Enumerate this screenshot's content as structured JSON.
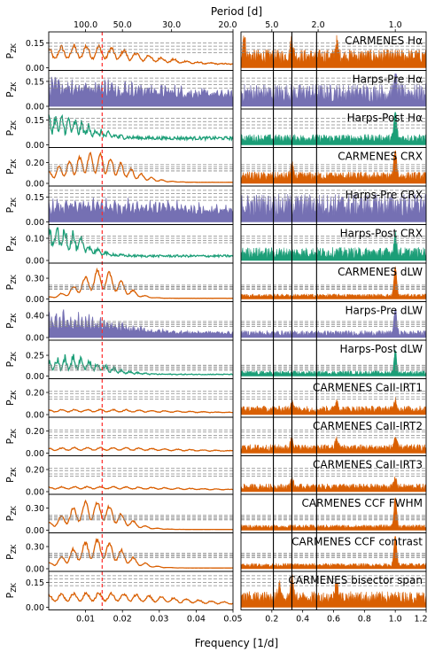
{
  "chart_data": {
    "type": "line",
    "title": "",
    "xlabel_bottom": "Frequency [1/d]",
    "xlabel_top": "Period [d]",
    "ylabel": "P",
    "ylabel_sub": "ZK",
    "colors": {
      "CARMENES": "#d95f02",
      "Harps-Pre": "#7570b3",
      "Harps-Post": "#1b9e77"
    },
    "left_xlim": [
      0.0,
      0.05
    ],
    "right_xlim": [
      0.0,
      1.2
    ],
    "left_xticks": [
      "0.01",
      "0.02",
      "0.03",
      "0.04",
      "0.05"
    ],
    "left_xtick_values": [
      0.01,
      0.02,
      0.03,
      0.04,
      0.05
    ],
    "right_xticks": [
      "0.2",
      "0.4",
      "0.6",
      "0.8",
      "1.0",
      "1.2"
    ],
    "right_xtick_values": [
      0.2,
      0.4,
      0.6,
      0.8,
      1.0,
      1.2
    ],
    "left_top_ticks": [
      "100.0",
      "50.0",
      "30.0",
      "20.0"
    ],
    "left_top_tick_periods": [
      100,
      50,
      30,
      20
    ],
    "right_top_ticks": [
      "5.0",
      "2.0",
      "1.0"
    ],
    "right_top_tick_periods": [
      5,
      2,
      1
    ],
    "red_line_freq": 0.0145,
    "right_vlines_freq": [
      0.21,
      0.33,
      0.49
    ],
    "panels": [
      {
        "label": "CARMENES Hα",
        "instrument": "CARMENES",
        "yticks": [
          "0.15",
          "0.00"
        ],
        "ytick_values": [
          0.15,
          0.0
        ],
        "ymax": 0.2,
        "fap": [
          0.09,
          0.11,
          0.13,
          0.15
        ],
        "left_amp": 0.11,
        "left_peak_freq": 0.009,
        "left_decay": 0.022,
        "left_period": 0.0034,
        "left_floor": 0.02,
        "left_noise": 0.25,
        "right_level": 0.07,
        "right_noise": 0.6,
        "right_peaks": [
          [
            0.02,
            0.13
          ],
          [
            0.33,
            0.11
          ],
          [
            0.62,
            0.09
          ]
        ]
      },
      {
        "label": "Harps-Pre Hα",
        "instrument": "Harps-Pre",
        "yticks": [
          "0.15",
          "0.00"
        ],
        "ytick_values": [
          0.15,
          0.0
        ],
        "ymax": 0.2,
        "fap": [
          0.11,
          0.13,
          0.15,
          0.17
        ],
        "left_amp": 0.09,
        "left_peak_freq": 0.002,
        "left_decay": 0.04,
        "left_period": 0.0009,
        "left_floor": 0.05,
        "left_noise": 0.8,
        "right_level": 0.08,
        "right_noise": 0.7,
        "right_peaks": [
          [
            1.0,
            0.12
          ]
        ]
      },
      {
        "label": "Harps-Post Hα",
        "instrument": "Harps-Post",
        "yticks": [
          "0.15",
          "0.00"
        ],
        "ytick_values": [
          0.15,
          0.0
        ],
        "ymax": 0.2,
        "fap": [
          0.1,
          0.12,
          0.14,
          0.16
        ],
        "left_amp": 0.12,
        "left_peak_freq": 0.0015,
        "left_decay": 0.012,
        "left_period": 0.0018,
        "left_floor": 0.04,
        "left_noise": 0.5,
        "right_level": 0.04,
        "right_noise": 0.6,
        "right_peaks": [
          [
            1.0,
            0.17
          ]
        ]
      },
      {
        "label": "CARMENES CRX",
        "instrument": "CARMENES",
        "yticks": [
          "0.20",
          "0.00"
        ],
        "ytick_values": [
          0.2,
          0.0
        ],
        "ymax": 0.32,
        "fap": [
          0.12,
          0.14,
          0.16,
          0.18
        ],
        "left_amp": 0.27,
        "left_peak_freq": 0.012,
        "left_decay": 0.012,
        "left_period": 0.0028,
        "left_floor": 0.01,
        "left_noise": 0.15,
        "right_level": 0.07,
        "right_noise": 0.6,
        "right_peaks": [
          [
            1.0,
            0.27
          ],
          [
            0.33,
            0.11
          ]
        ]
      },
      {
        "label": "Harps-Pre CRX",
        "instrument": "Harps-Pre",
        "yticks": [
          "0.15",
          "0.00"
        ],
        "ytick_values": [
          0.15,
          0.0
        ],
        "ymax": 0.2,
        "fap": [
          0.13,
          0.15,
          0.17,
          0.19
        ],
        "left_amp": 0.07,
        "left_peak_freq": 0.015,
        "left_decay": 0.04,
        "left_period": 0.0012,
        "left_floor": 0.04,
        "left_noise": 0.8,
        "right_level": 0.1,
        "right_noise": 0.7,
        "right_peaks": []
      },
      {
        "label": "Harps-Post CRX",
        "instrument": "Harps-Post",
        "yticks": [
          "0.10",
          "0.00"
        ],
        "ytick_values": [
          0.1,
          0.0
        ],
        "ymax": 0.15,
        "fap": [
          0.08,
          0.09,
          0.1,
          0.11
        ],
        "left_amp": 0.13,
        "left_peak_freq": 0.001,
        "left_decay": 0.01,
        "left_period": 0.0022,
        "left_floor": 0.02,
        "left_noise": 0.5,
        "right_level": 0.035,
        "right_noise": 0.7,
        "right_peaks": [
          [
            1.0,
            0.08
          ]
        ]
      },
      {
        "label": "CARMENES dLW",
        "instrument": "CARMENES",
        "yticks": [
          "0.30",
          "0.00"
        ],
        "ytick_values": [
          0.3,
          0.0
        ],
        "ymax": 0.48,
        "fap": [
          0.14,
          0.16,
          0.18,
          0.2
        ],
        "left_amp": 0.4,
        "left_peak_freq": 0.014,
        "left_decay": 0.008,
        "left_period": 0.0033,
        "left_floor": 0.01,
        "left_noise": 0.15,
        "right_level": 0.05,
        "right_noise": 0.5,
        "right_peaks": [
          [
            1.0,
            0.42
          ]
        ]
      },
      {
        "label": "Harps-Pre dLW",
        "instrument": "Harps-Pre",
        "yticks": [
          "0.40",
          "0.00"
        ],
        "ytick_values": [
          0.4,
          0.0
        ],
        "ymax": 0.6,
        "fap": [
          0.2,
          0.23,
          0.26,
          0.29
        ],
        "left_amp": 0.3,
        "left_peak_freq": 0.001,
        "left_decay": 0.02,
        "left_period": 0.001,
        "left_floor": 0.08,
        "left_noise": 0.8,
        "right_level": 0.08,
        "right_noise": 0.6,
        "right_peaks": [
          [
            1.0,
            0.45
          ]
        ]
      },
      {
        "label": "Harps-Post dLW",
        "instrument": "Harps-Post",
        "yticks": [
          "0.25",
          "0.00"
        ],
        "ytick_values": [
          0.25,
          0.0
        ],
        "ymax": 0.4,
        "fap": [
          0.07,
          0.09,
          0.11,
          0.13
        ],
        "left_amp": 0.2,
        "left_peak_freq": 0.006,
        "left_decay": 0.012,
        "left_period": 0.0022,
        "left_floor": 0.02,
        "left_noise": 0.5,
        "right_level": 0.04,
        "right_noise": 0.6,
        "right_peaks": [
          [
            1.0,
            0.27
          ]
        ]
      },
      {
        "label": "CARMENES CaII-IRT1",
        "instrument": "CARMENES",
        "yticks": [
          "0.20",
          "0.00"
        ],
        "ytick_values": [
          0.2,
          0.0
        ],
        "ymax": 0.3,
        "fap": [
          0.14,
          0.16,
          0.19,
          0.21
        ],
        "left_amp": 0.03,
        "left_peak_freq": 0.012,
        "left_decay": 0.03,
        "left_period": 0.0035,
        "left_floor": 0.015,
        "left_noise": 0.2,
        "right_level": 0.05,
        "right_noise": 0.6,
        "right_peaks": [
          [
            0.33,
            0.09
          ],
          [
            0.62,
            0.08
          ],
          [
            1.0,
            0.09
          ]
        ]
      },
      {
        "label": "CARMENES CaII-IRT2",
        "instrument": "CARMENES",
        "yticks": [
          "0.20",
          "0.00"
        ],
        "ytick_values": [
          0.2,
          0.0
        ],
        "ymax": 0.3,
        "fap": [
          0.14,
          0.16,
          0.19,
          0.21
        ],
        "left_amp": 0.035,
        "left_peak_freq": 0.013,
        "left_decay": 0.03,
        "left_period": 0.0035,
        "left_floor": 0.015,
        "left_noise": 0.2,
        "right_level": 0.05,
        "right_noise": 0.6,
        "right_peaks": [
          [
            0.33,
            0.1
          ],
          [
            0.62,
            0.08
          ],
          [
            1.0,
            0.1
          ]
        ]
      },
      {
        "label": "CARMENES CaII-IRT3",
        "instrument": "CARMENES",
        "yticks": [
          "0.20",
          "0.00"
        ],
        "ytick_values": [
          0.2,
          0.0
        ],
        "ymax": 0.3,
        "fap": [
          0.14,
          0.16,
          0.19,
          0.21
        ],
        "left_amp": 0.03,
        "left_peak_freq": 0.012,
        "left_decay": 0.03,
        "left_period": 0.0035,
        "left_floor": 0.015,
        "left_noise": 0.2,
        "right_level": 0.045,
        "right_noise": 0.6,
        "right_peaks": [
          [
            0.33,
            0.08
          ],
          [
            1.0,
            0.08
          ]
        ]
      },
      {
        "label": "CARMENES CCF FWHM",
        "instrument": "CARMENES",
        "yticks": [
          "0.30",
          "0.00"
        ],
        "ytick_values": [
          0.3,
          0.0
        ],
        "ymax": 0.45,
        "fap": [
          0.14,
          0.16,
          0.18,
          0.2
        ],
        "left_amp": 0.38,
        "left_peak_freq": 0.012,
        "left_decay": 0.01,
        "left_period": 0.0033,
        "left_floor": 0.01,
        "left_noise": 0.15,
        "right_level": 0.05,
        "right_noise": 0.5,
        "right_peaks": [
          [
            1.0,
            0.4
          ]
        ]
      },
      {
        "label": "CARMENES CCF contrast",
        "instrument": "CARMENES",
        "yticks": [
          "0.30",
          "0.00"
        ],
        "ytick_values": [
          0.3,
          0.0
        ],
        "ymax": 0.45,
        "fap": [
          0.15,
          0.17,
          0.19,
          0.21
        ],
        "left_amp": 0.38,
        "left_peak_freq": 0.013,
        "left_decay": 0.01,
        "left_period": 0.0033,
        "left_floor": 0.01,
        "left_noise": 0.15,
        "right_level": 0.05,
        "right_noise": 0.5,
        "right_peaks": [
          [
            1.0,
            0.42
          ]
        ]
      },
      {
        "label": "CARMENES bisector span",
        "instrument": "CARMENES",
        "yticks": [
          "0.15",
          "0.00"
        ],
        "ytick_values": [
          0.15,
          0.0
        ],
        "ymax": 0.2,
        "fap": [
          0.13,
          0.15,
          0.17,
          0.19
        ],
        "left_amp": 0.07,
        "left_peak_freq": 0.012,
        "left_decay": 0.03,
        "left_period": 0.0034,
        "left_floor": 0.015,
        "left_noise": 0.2,
        "right_level": 0.06,
        "right_noise": 0.6,
        "right_peaks": [
          [
            0.33,
            0.12
          ],
          [
            0.62,
            0.11
          ],
          [
            0.25,
            0.09
          ]
        ]
      }
    ]
  }
}
